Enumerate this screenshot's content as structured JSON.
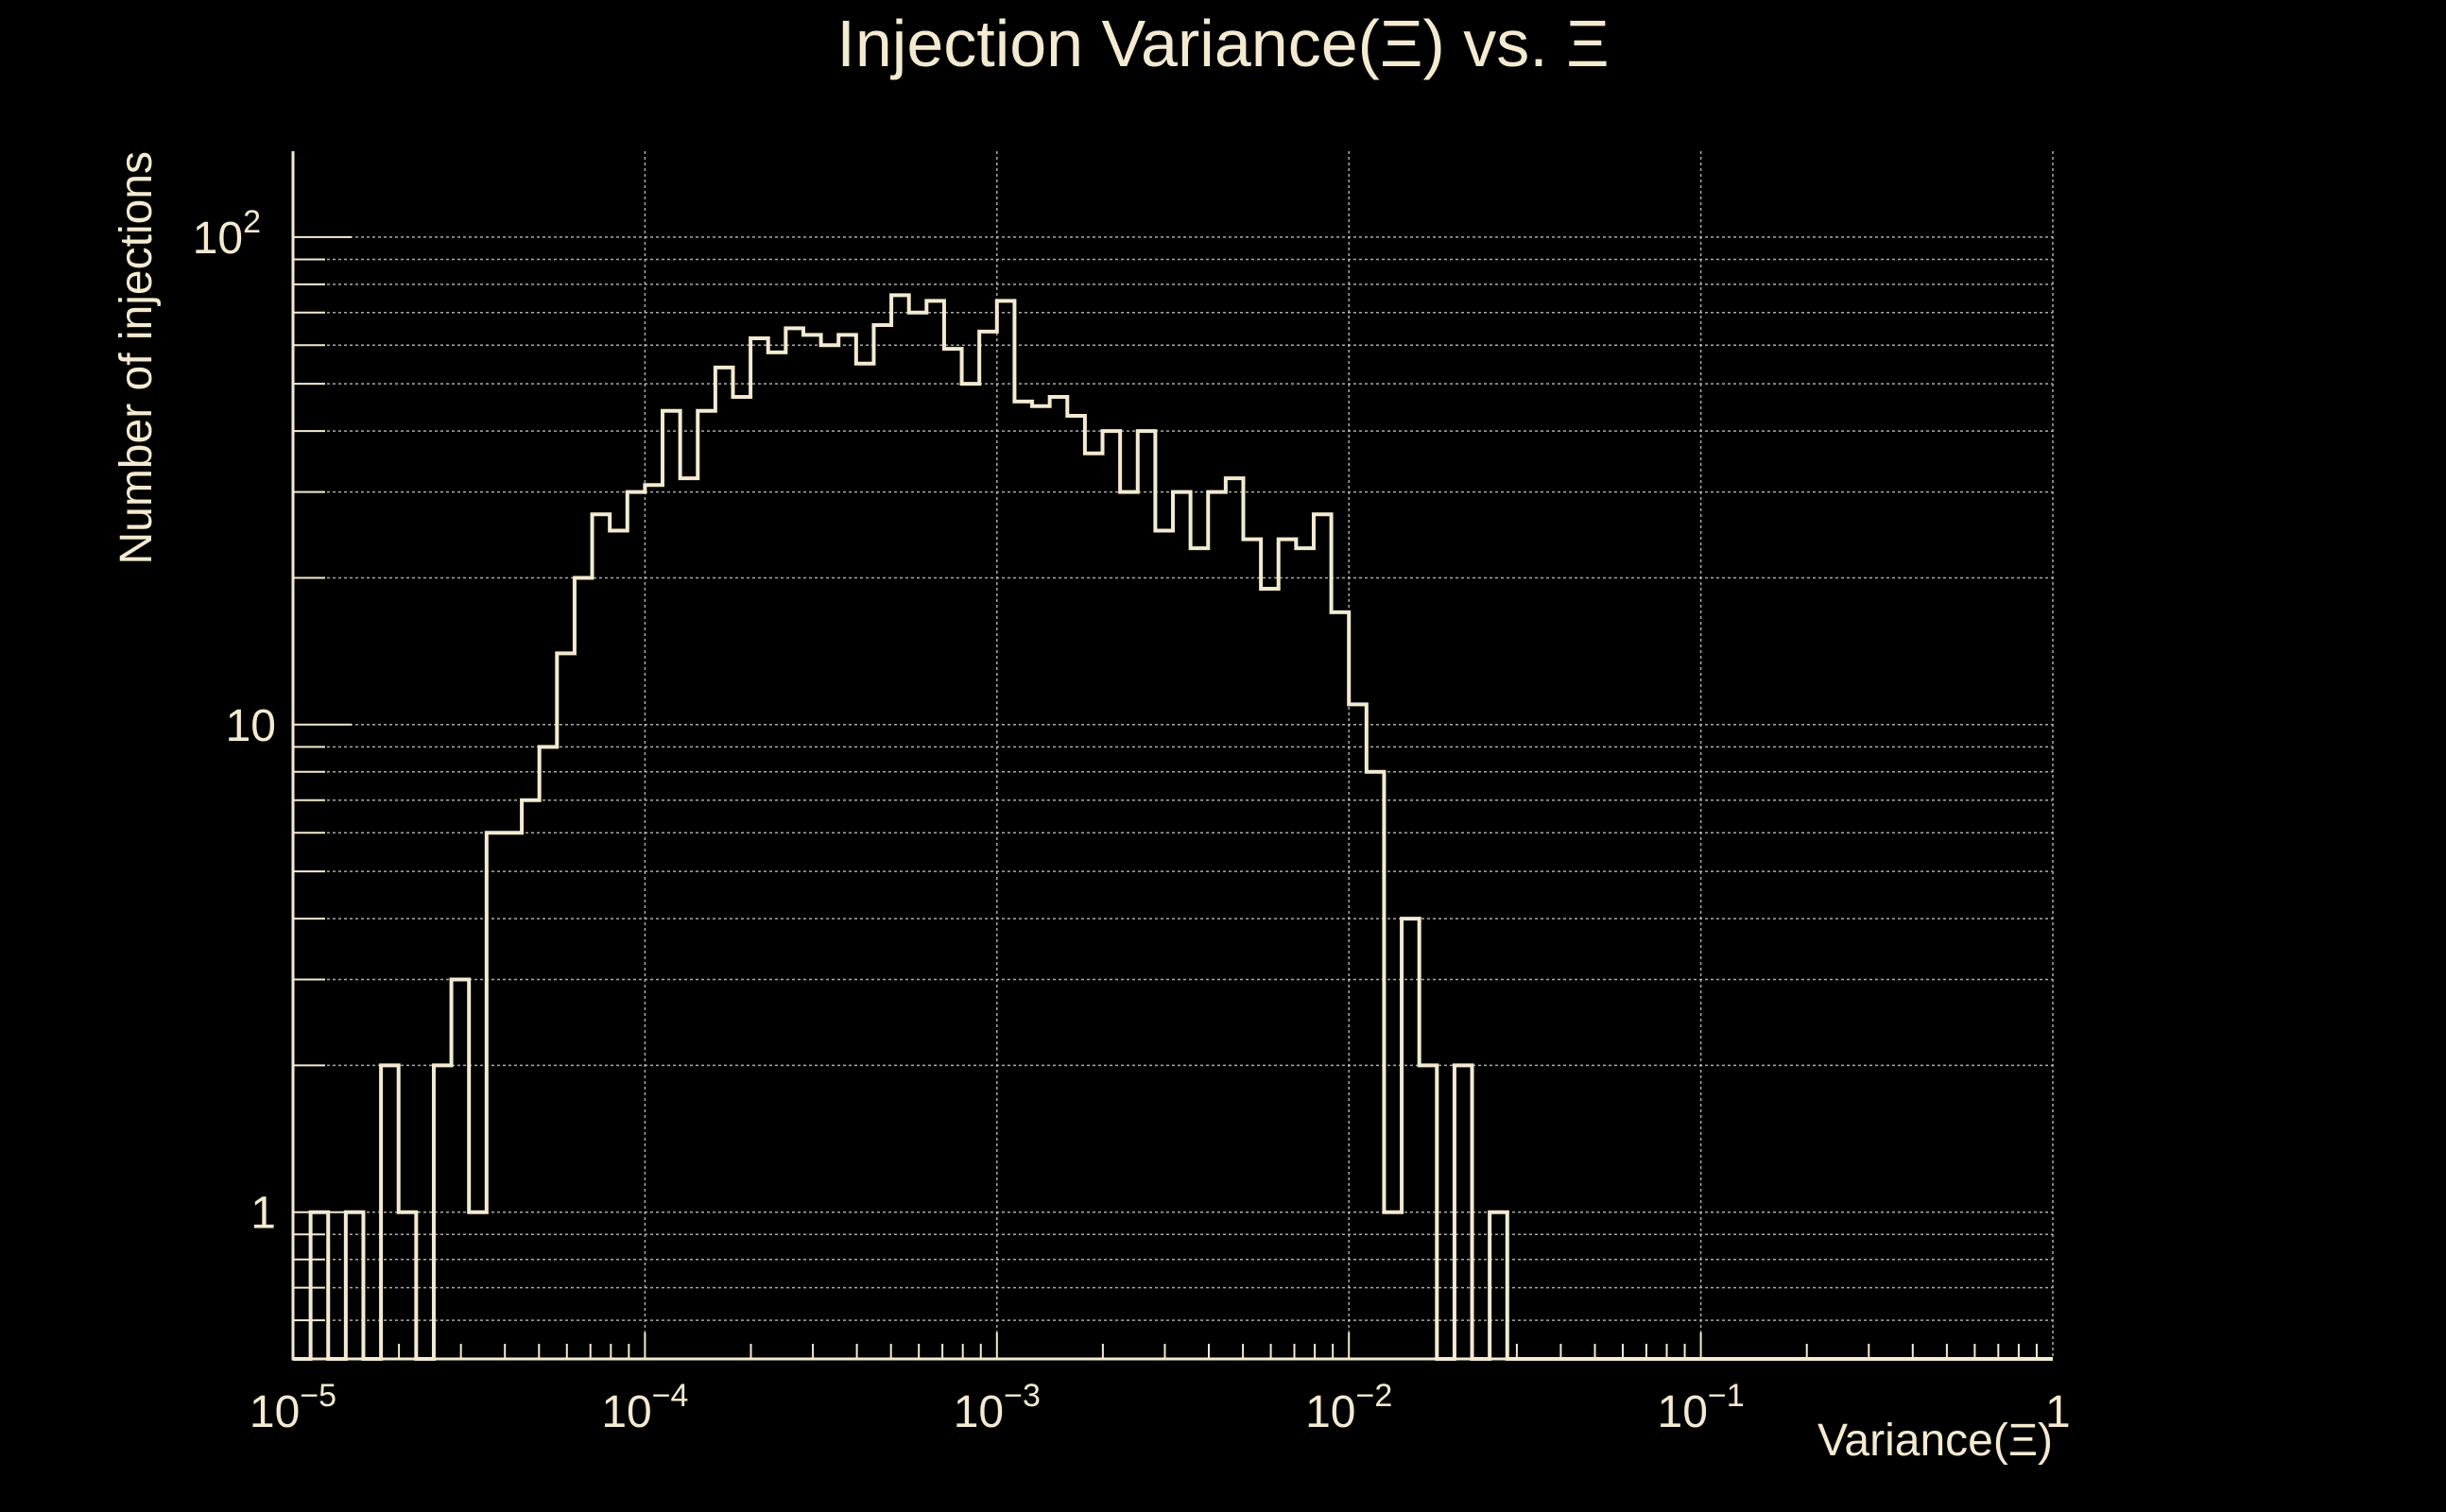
{
  "chart_data": {
    "type": "histogram",
    "title": "Injection Variance(Ξ) vs. Ξ",
    "xlabel": "Variance(Ξ)",
    "ylabel": "Number of injections",
    "x_scale": "log",
    "y_scale": "log",
    "xlim": [
      1e-05,
      1
    ],
    "ylim": [
      0.5,
      150
    ],
    "grid": true,
    "bins_per_decade": 20,
    "x_tick_labels": [
      {
        "value": 1e-05,
        "base": "10",
        "exp": "−5"
      },
      {
        "value": 0.0001,
        "base": "10",
        "exp": "−4"
      },
      {
        "value": 0.001,
        "base": "10",
        "exp": "−3"
      },
      {
        "value": 0.01,
        "base": "10",
        "exp": "−2"
      },
      {
        "value": 0.1,
        "base": "10",
        "exp": "−1"
      },
      {
        "value": 1,
        "base": "1",
        "exp": ""
      }
    ],
    "y_tick_labels": [
      {
        "value": 1,
        "base": "1",
        "exp": ""
      },
      {
        "value": 10,
        "base": "10",
        "exp": ""
      },
      {
        "value": 100,
        "base": "10",
        "exp": "2"
      }
    ],
    "counts": [
      0,
      1,
      0,
      1,
      0,
      2,
      1,
      0,
      2,
      3,
      1,
      6,
      6,
      7,
      9,
      14,
      20,
      27,
      25,
      30,
      31,
      44,
      32,
      44,
      54,
      47,
      62,
      58,
      65,
      63,
      60,
      63,
      55,
      66,
      76,
      70,
      74,
      59,
      50,
      64,
      74,
      46,
      45,
      47,
      43,
      36,
      40,
      30,
      40,
      25,
      30,
      23,
      30,
      32,
      24,
      19,
      24,
      23,
      27,
      17,
      11,
      8,
      1,
      4,
      2,
      0,
      2,
      0,
      1,
      0,
      0,
      0,
      0,
      0,
      0,
      0,
      0,
      0,
      0,
      0,
      0,
      0,
      0,
      0,
      0,
      0,
      0,
      0,
      0,
      0,
      0,
      0,
      0,
      0,
      0,
      0,
      0,
      0,
      0,
      0
    ],
    "colors": {
      "background": "#000000",
      "foreground": "#f4ead0",
      "grid": "#c8c8c8"
    }
  }
}
